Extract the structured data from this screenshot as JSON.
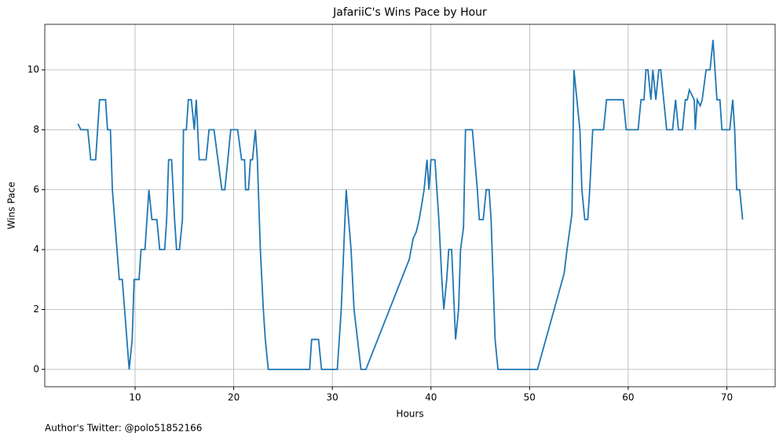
{
  "chart_data": {
    "type": "line",
    "title": "JafariiC's Wins Pace by Hour",
    "xlabel": "Hours",
    "ylabel": "Wins Pace",
    "footer": "Author's Twitter: @polo51852166",
    "color": "#1f77b4",
    "grid": true,
    "xlim": [
      0.84,
      74.9
    ],
    "ylim": [
      -0.58,
      11.52
    ],
    "xticks": [
      10,
      20,
      30,
      40,
      50,
      60,
      70
    ],
    "yticks": [
      0,
      2,
      4,
      6,
      8,
      10
    ],
    "x": [
      4.2,
      4.5,
      5.2,
      5.5,
      6.0,
      6.4,
      7.0,
      7.2,
      7.5,
      7.7,
      8.4,
      8.7,
      9.4,
      9.7,
      9.9,
      10.4,
      10.6,
      11.0,
      11.4,
      11.7,
      12.2,
      12.5,
      13.0,
      13.2,
      13.4,
      13.7,
      14.0,
      14.2,
      14.5,
      14.8,
      14.9,
      15.2,
      15.4,
      15.7,
      16.0,
      16.2,
      16.5,
      17.2,
      17.5,
      18.0,
      18.4,
      18.8,
      19.1,
      19.4,
      19.7,
      20.4,
      20.8,
      21.1,
      21.2,
      21.5,
      21.7,
      21.9,
      22.2,
      22.4,
      22.7,
      23.0,
      23.2,
      23.5,
      27.7,
      27.9,
      28.6,
      28.9,
      30.5,
      30.9,
      31.4,
      31.9,
      32.2,
      32.9,
      33.4,
      37.8,
      38.2,
      38.5,
      38.8,
      39.1,
      39.3,
      39.6,
      39.8,
      40.0,
      40.4,
      40.6,
      40.8,
      41.1,
      41.3,
      41.6,
      41.8,
      42.1,
      42.5,
      42.8,
      43.0,
      43.3,
      43.5,
      44.2,
      44.7,
      44.9,
      45.3,
      45.6,
      45.9,
      46.1,
      46.5,
      46.8,
      50.8,
      53.5,
      53.8,
      54.3,
      54.5,
      55.1,
      55.3,
      55.6,
      55.9,
      56.1,
      56.4,
      57.5,
      57.8,
      59.5,
      59.8,
      61.0,
      61.3,
      61.6,
      61.8,
      62.0,
      62.3,
      62.5,
      62.8,
      63.1,
      63.3,
      63.6,
      63.9,
      64.5,
      64.8,
      65.1,
      65.5,
      65.8,
      66.0,
      66.2,
      66.7,
      66.8,
      67.0,
      67.3,
      67.5,
      67.9,
      68.3,
      68.6,
      69.0,
      69.3,
      69.5,
      70.3,
      70.6,
      70.8,
      71.0,
      71.3,
      71.6
    ],
    "values": [
      8.2,
      8,
      8,
      7,
      7,
      9,
      9,
      8,
      8,
      6,
      3,
      3,
      0,
      1,
      3,
      3,
      4,
      4,
      6,
      5,
      5,
      4,
      4,
      5,
      7,
      7,
      5,
      4,
      4,
      5,
      8,
      8,
      9,
      9,
      8,
      9,
      7,
      7,
      8,
      8,
      7,
      6,
      6,
      7,
      8,
      8,
      7,
      7,
      6,
      6,
      7,
      7,
      8,
      7,
      4,
      2,
      1,
      0,
      0,
      1,
      1,
      0,
      0,
      2,
      6,
      4,
      2,
      0,
      0,
      3.67,
      4.37,
      4.58,
      5,
      5.57,
      6,
      7,
      6,
      7,
      7,
      6,
      5,
      3,
      2,
      3,
      4,
      4,
      1,
      2,
      4,
      4.74,
      8,
      8,
      6,
      5,
      5,
      6,
      6,
      5,
      1,
      0,
      0,
      3.2,
      4,
      5.2,
      10,
      8,
      6,
      5,
      5,
      6,
      8,
      8,
      9,
      9,
      8,
      8,
      9,
      9,
      10,
      10,
      9,
      10,
      9,
      10,
      10,
      9,
      8,
      8,
      9,
      8,
      8,
      9,
      9,
      9.33,
      9,
      8,
      9,
      8.8,
      9,
      10,
      10,
      11,
      9,
      9,
      8,
      8,
      9,
      8,
      6,
      6,
      5
    ]
  }
}
